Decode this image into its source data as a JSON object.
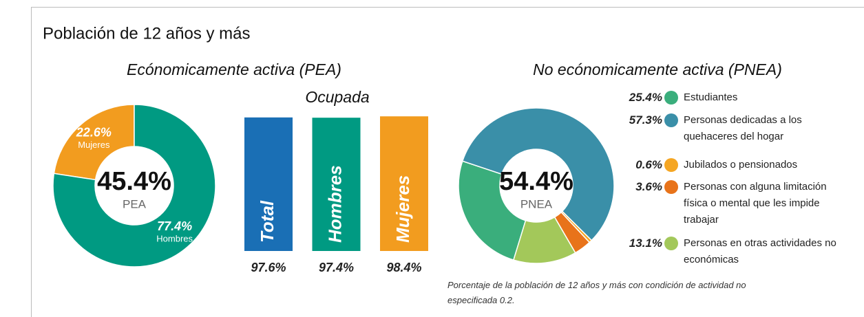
{
  "title": "Población de 12 años y más",
  "chart_data": [
    {
      "type": "donut",
      "title": "Ecónomicamente activa (PEA)",
      "center": {
        "value": 45.4,
        "label": "45.4%",
        "text": "PEA"
      },
      "categories": [
        "Mujeres",
        "Hombres"
      ],
      "values": [
        22.6,
        77.4
      ],
      "value_labels": [
        "22.6%",
        "77.4%"
      ],
      "colors": [
        "#f29c1f",
        "#009a82"
      ]
    },
    {
      "type": "bar",
      "title": "Ocupada",
      "categories": [
        "Total",
        "Hombres",
        "Mujeres"
      ],
      "values": [
        97.6,
        97.4,
        98.4
      ],
      "value_labels": [
        "97.6%",
        "97.4%",
        "98.4%"
      ],
      "colors": [
        "#1a6fb5",
        "#009a82",
        "#f29c1f"
      ],
      "ylim": [
        0,
        100
      ]
    },
    {
      "type": "donut",
      "title": "No ecónomicamente activa (PNEA)",
      "center": {
        "value": 54.4,
        "label": "54.4%",
        "text": "PNEA"
      },
      "categories": [
        "Estudiantes",
        "Personas dedicadas a los quehaceres del hogar",
        "Jubilados o pensionados",
        "Personas con alguna limitación física o mental que les impide trabajar",
        "Personas en otras actividades no económicas"
      ],
      "values": [
        25.4,
        57.3,
        0.6,
        3.6,
        13.1
      ],
      "value_labels": [
        "25.4%",
        "57.3%",
        "0.6%",
        "3.6%",
        "13.1%"
      ],
      "colors": [
        "#3aae7c",
        "#3a8fa8",
        "#f5a623",
        "#e8731a",
        "#a3c85a"
      ],
      "legend": "right",
      "note": "Porcentaje de la población de 12 años y más con condición de actividad no especificada 0.2."
    }
  ]
}
